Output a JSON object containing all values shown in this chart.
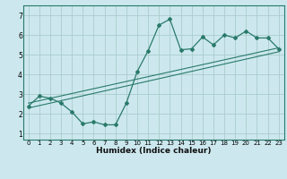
{
  "title": "",
  "xlabel": "Humidex (Indice chaleur)",
  "bg_color": "#cce8ee",
  "grid_color": "#aacccc",
  "line_color": "#2a7a6a",
  "xlim": [
    -0.5,
    23.5
  ],
  "ylim": [
    0.7,
    7.5
  ],
  "xticks": [
    0,
    1,
    2,
    3,
    4,
    5,
    6,
    7,
    8,
    9,
    10,
    11,
    12,
    13,
    14,
    15,
    16,
    17,
    18,
    19,
    20,
    21,
    22,
    23
  ],
  "yticks": [
    1,
    2,
    3,
    4,
    5,
    6,
    7
  ],
  "line1_x": [
    0,
    1,
    2,
    3,
    4,
    5,
    6,
    7,
    8,
    9,
    10,
    11,
    12,
    13,
    14,
    15,
    16,
    17,
    18,
    19,
    20,
    21,
    22,
    23
  ],
  "line1_y": [
    2.4,
    2.9,
    2.8,
    2.55,
    2.1,
    1.5,
    1.6,
    1.45,
    1.45,
    2.55,
    4.15,
    5.2,
    6.5,
    6.8,
    5.25,
    5.3,
    5.9,
    5.5,
    6.0,
    5.85,
    6.2,
    5.85,
    5.85,
    5.3
  ],
  "line2_x": [
    0,
    23
  ],
  "line2_y": [
    2.55,
    5.35
  ],
  "line3_x": [
    0,
    23
  ],
  "line3_y": [
    2.3,
    5.15
  ],
  "tick_fontsize": 5,
  "xlabel_fontsize": 6.5
}
